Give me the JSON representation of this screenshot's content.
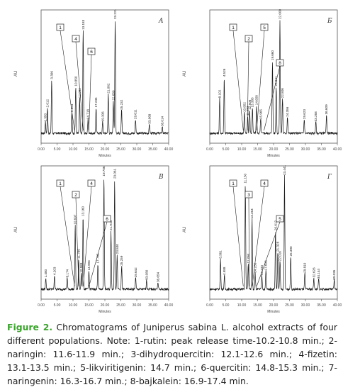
{
  "figure": {
    "caption_label": "Figure 2.",
    "caption_text": " Chromatograms of Juniperus sabina L. alcohol extracts of four different populations. Note: 1-rutin: peak release time-10.2-10.8 min.; 2-naringin: 11.6-11.9 min.; 3-dihydroquercitin: 12.1-12.6 min.; 4-fizetin: 13.1-13.5 min.; 5-likviritigenin: 14.7 min.; 6-quercitin: 14.8-15.3 min.; 7-naringenin: 16.3-16.7 min.; 8-bajkalein: 16.9-17.4 min."
  },
  "chart_data": [
    {
      "type": "line",
      "panel_label": "A",
      "xlabel": "Minutes",
      "ylabel": "AU",
      "xlim": [
        0,
        40
      ],
      "x_ticks": [
        "0.00",
        "5.00",
        "10.00",
        "15.00",
        "20.00",
        "25.00",
        "30.00",
        "35.00",
        "40.00"
      ],
      "peaks": [
        {
          "rt": 1.35,
          "h": 0.1,
          "label": "1.350"
        },
        {
          "rt": 2.012,
          "h": 0.22,
          "label": "2.012"
        },
        {
          "rt": 3.306,
          "h": 0.46,
          "label": "3.306"
        },
        {
          "rt": 9.654,
          "h": 0.18,
          "label": "9.654"
        },
        {
          "rt": 10.85,
          "h": 0.4,
          "label": "10.850"
        },
        {
          "rt": 12.082,
          "h": 0.3,
          "label": "12.082"
        },
        {
          "rt": 13.183,
          "h": 0.88,
          "label": "13.183"
        },
        {
          "rt": 14.718,
          "h": 0.12,
          "label": "14.718"
        },
        {
          "rt": 17.235,
          "h": 0.22,
          "label": "17.235"
        },
        {
          "rt": 19.306,
          "h": 0.1,
          "label": "19.306"
        },
        {
          "rt": 21.062,
          "h": 0.34,
          "label": "21.062"
        },
        {
          "rt": 22.65,
          "h": 0.28,
          "label": "22.650"
        },
        {
          "rt": 23.221,
          "h": 0.97,
          "label": "23.221"
        },
        {
          "rt": 25.232,
          "h": 0.2,
          "label": "25.232"
        },
        {
          "rt": 29.611,
          "h": 0.12,
          "label": "29.611"
        },
        {
          "rt": 33.968,
          "h": 0.08,
          "label": "33.968"
        },
        {
          "rt": 38.014,
          "h": 0.06,
          "label": "38.014"
        }
      ],
      "callouts": [
        {
          "num": "1",
          "rt": 10.5
        },
        {
          "num": "4",
          "rt": 13.2
        },
        {
          "num": "6",
          "rt": 15.0
        }
      ]
    },
    {
      "type": "line",
      "panel_label": "Б",
      "xlabel": "Minutes",
      "ylabel": "AU",
      "xlim": [
        0,
        40
      ],
      "x_ticks": [
        "0.00",
        "5.00",
        "10.00",
        "15.00",
        "20.00",
        "25.00",
        "30.00",
        "35.00",
        "40.00"
      ],
      "peaks": [
        {
          "rt": 3.102,
          "h": 0.3,
          "label": "3.102"
        },
        {
          "rt": 4.526,
          "h": 0.48,
          "label": "4.526"
        },
        {
          "rt": 10.852,
          "h": 0.18,
          "label": "10.852"
        },
        {
          "rt": 11.893,
          "h": 0.15,
          "label": "11.893"
        },
        {
          "rt": 12.506,
          "h": 0.2,
          "label": "12.506"
        },
        {
          "rt": 13.383,
          "h": 0.22,
          "label": "13.383"
        },
        {
          "rt": 14.658,
          "h": 0.24,
          "label": "14.658"
        },
        {
          "rt": 15.965,
          "h": 0.12,
          "label": "15.965"
        },
        {
          "rt": 19.66,
          "h": 0.62,
          "label": "19.660"
        },
        {
          "rt": 20.831,
          "h": 0.4,
          "label": "20.831"
        },
        {
          "rt": 22.0,
          "h": 0.97,
          "label": "22.000"
        },
        {
          "rt": 22.806,
          "h": 0.3,
          "label": "22.806"
        },
        {
          "rt": 24.356,
          "h": 0.14,
          "label": "24.356"
        },
        {
          "rt": 29.623,
          "h": 0.12,
          "label": "29.623"
        },
        {
          "rt": 33.268,
          "h": 0.1,
          "label": "33.268"
        },
        {
          "rt": 36.609,
          "h": 0.16,
          "label": "36.609"
        }
      ],
      "callouts": [
        {
          "num": "1",
          "rt": 10.5
        },
        {
          "num": "2",
          "rt": 11.8
        },
        {
          "num": "5",
          "rt": 14.7
        },
        {
          "num": "8",
          "rt": 17.0
        }
      ]
    },
    {
      "type": "line",
      "panel_label": "В",
      "xlabel": "Minutes",
      "ylabel": "AU",
      "xlim": [
        0,
        40
      ],
      "x_ticks": [
        "0.00",
        "5.00",
        "10.00",
        "15.00",
        "20.00",
        "25.00",
        "30.00",
        "35.00",
        "40.00"
      ],
      "peaks": [
        {
          "rt": 1.48,
          "h": 0.1,
          "label": "1.480"
        },
        {
          "rt": 4.203,
          "h": 0.12,
          "label": "4.203"
        },
        {
          "rt": 8.174,
          "h": 0.1,
          "label": "8.174"
        },
        {
          "rt": 10.697,
          "h": 0.55,
          "label": "10.697"
        },
        {
          "rt": 11.78,
          "h": 0.26,
          "label": "11.780"
        },
        {
          "rt": 12.589,
          "h": 0.14,
          "label": "12.589"
        },
        {
          "rt": 13.16,
          "h": 0.62,
          "label": "13.160"
        },
        {
          "rt": 14.993,
          "h": 0.16,
          "label": "14.993"
        },
        {
          "rt": 17.795,
          "h": 0.22,
          "label": "17.795"
        },
        {
          "rt": 19.706,
          "h": 0.96,
          "label": "19.706"
        },
        {
          "rt": 21.918,
          "h": 0.5,
          "label": "21.918"
        },
        {
          "rt": 23.061,
          "h": 0.94,
          "label": "23.061"
        },
        {
          "rt": 23.84,
          "h": 0.3,
          "label": "23.840"
        },
        {
          "rt": 25.259,
          "h": 0.2,
          "label": "25.259"
        },
        {
          "rt": 29.642,
          "h": 0.1,
          "label": "29.642"
        },
        {
          "rt": 33.08,
          "h": 0.08,
          "label": "33.080"
        },
        {
          "rt": 36.654,
          "h": 0.06,
          "label": "36.654"
        }
      ],
      "callouts": [
        {
          "num": "1",
          "rt": 10.5
        },
        {
          "num": "2",
          "rt": 11.8
        },
        {
          "num": "4",
          "rt": 13.2
        },
        {
          "num": "6",
          "rt": 15.0
        }
      ]
    },
    {
      "type": "line",
      "panel_label": "Г",
      "xlabel": "Minutes",
      "ylabel": "AU",
      "xlim": [
        0,
        40
      ],
      "x_ticks": [
        "0.00",
        "5.00",
        "10.00",
        "15.00",
        "20.00",
        "25.00",
        "30.00",
        "35.00",
        "40.00"
      ],
      "peaks": [
        {
          "rt": 3.361,
          "h": 0.26,
          "label": "3.361"
        },
        {
          "rt": 4.588,
          "h": 0.12,
          "label": "4.588"
        },
        {
          "rt": 11.15,
          "h": 0.9,
          "label": "11.150"
        },
        {
          "rt": 12.064,
          "h": 0.22,
          "label": "12.064"
        },
        {
          "rt": 13.264,
          "h": 0.6,
          "label": "13.264"
        },
        {
          "rt": 14.236,
          "h": 0.14,
          "label": "14.236"
        },
        {
          "rt": 16.333,
          "h": 0.12,
          "label": "16.333"
        },
        {
          "rt": 17.608,
          "h": 0.16,
          "label": "17.608"
        },
        {
          "rt": 20.612,
          "h": 0.5,
          "label": "20.612"
        },
        {
          "rt": 21.328,
          "h": 0.32,
          "label": "21.328"
        },
        {
          "rt": 22.016,
          "h": 0.24,
          "label": "22.016"
        },
        {
          "rt": 23.441,
          "h": 0.97,
          "label": "23.441"
        },
        {
          "rt": 25.39,
          "h": 0.28,
          "label": "25.390"
        },
        {
          "rt": 29.81,
          "h": 0.14,
          "label": "29.810"
        },
        {
          "rt": 32.626,
          "h": 0.1,
          "label": "32.626"
        },
        {
          "rt": 34.144,
          "h": 0.09,
          "label": "34.144"
        },
        {
          "rt": 39.035,
          "h": 0.08,
          "label": "39.035"
        }
      ],
      "callouts": [
        {
          "num": "1",
          "rt": 10.5
        },
        {
          "num": "3",
          "rt": 12.4
        },
        {
          "num": "4",
          "rt": 13.3
        },
        {
          "num": "5",
          "rt": 14.7
        }
      ]
    }
  ]
}
